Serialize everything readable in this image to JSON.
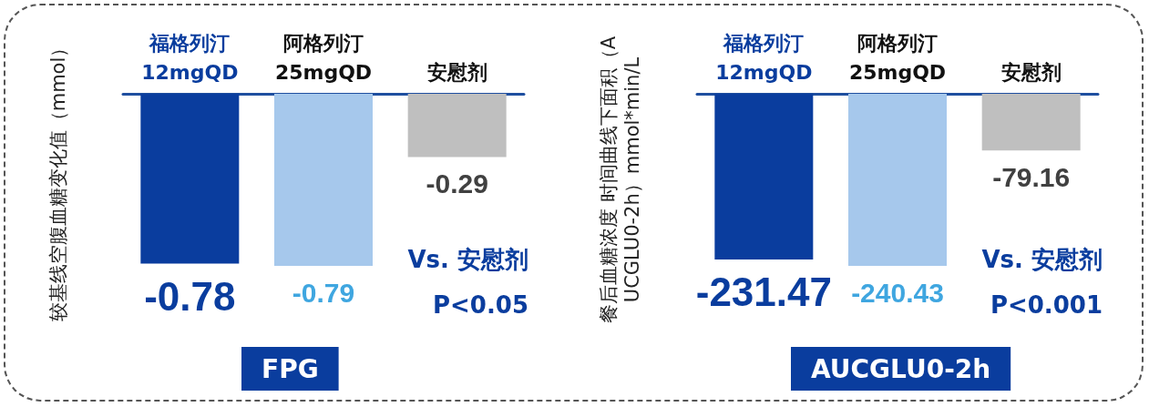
{
  "chart_data": [
    {
      "type": "bar",
      "title": "FPG",
      "ylabel": "较基线空腹血糖变化值（mmol）",
      "categories": [
        "福格列汀\n12mgQD",
        "阿格列汀\n25mgQD",
        "安慰剂"
      ],
      "values": [
        -0.78,
        -0.79,
        -0.29
      ],
      "colors": [
        "#0a3d9e",
        "#a6c8ec",
        "#bfbfbf"
      ],
      "data_labels": true,
      "annotations": [
        "Vs. 安慰剂",
        "P<0.05"
      ]
    },
    {
      "type": "bar",
      "title": "AUCGLU0-2h",
      "ylabel": "餐后血糖浓度 时间曲线下面积（AUCGLU0-2h）mmol*min/L",
      "categories": [
        "福格列汀\n12mgQD",
        "阿格列汀\n25mgQD",
        "安慰剂"
      ],
      "values": [
        -231.47,
        -240.43,
        -79.16
      ],
      "colors": [
        "#0a3d9e",
        "#a6c8ec",
        "#bfbfbf"
      ],
      "data_labels": true,
      "annotations": [
        "Vs. 安慰剂",
        "P<0.001"
      ]
    }
  ]
}
